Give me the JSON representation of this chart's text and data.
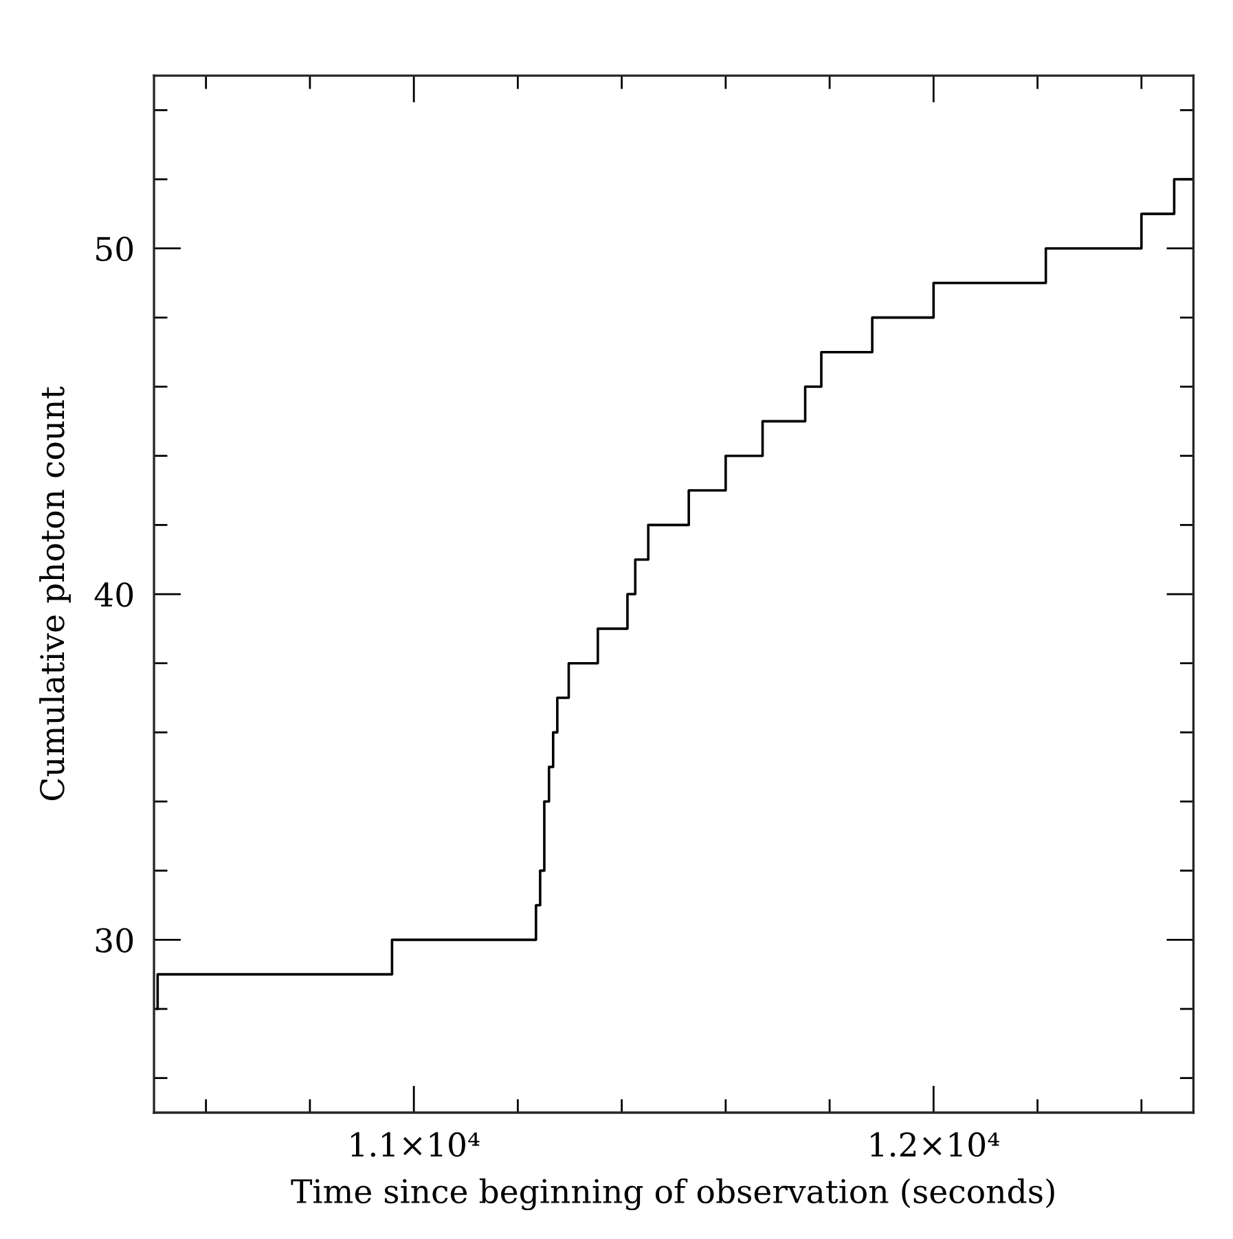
{
  "chart_data": {
    "type": "step",
    "xlabel": "Time since beginning of observation (seconds)",
    "ylabel": "Cumulative photon count",
    "x": [
      10505,
      10507,
      10958,
      11235,
      11243,
      11251,
      11260,
      11268,
      11276,
      11298,
      11354,
      11411,
      11426,
      11451,
      11529,
      11600,
      11671,
      11753,
      11784,
      11882,
      12000,
      12216,
      12400,
      12463,
      12500
    ],
    "series": [
      {
        "color": "#000000",
        "values": [
          28,
          29,
          30,
          31,
          32,
          34,
          35,
          36,
          37,
          38,
          39,
          40,
          41,
          42,
          43,
          44,
          45,
          46,
          47,
          48,
          49,
          50,
          51,
          52,
          52
        ]
      }
    ],
    "xlim": [
      10500,
      12500
    ],
    "ylim": [
      25,
      55
    ],
    "xticks": [
      {
        "value": 10600,
        "label": null
      },
      {
        "value": 10800,
        "label": null
      },
      {
        "value": 11000,
        "label": "1.1×10⁴"
      },
      {
        "value": 11200,
        "label": null
      },
      {
        "value": 11400,
        "label": null
      },
      {
        "value": 11600,
        "label": null
      },
      {
        "value": 11800,
        "label": null
      },
      {
        "value": 12000,
        "label": "1.2×10⁴"
      },
      {
        "value": 12200,
        "label": null
      },
      {
        "value": 12400,
        "label": null
      }
    ],
    "yticks": [
      {
        "value": 26,
        "label": null
      },
      {
        "value": 28,
        "label": null
      },
      30,
      {
        "value": 32,
        "label": null
      },
      {
        "value": 34,
        "label": null
      },
      {
        "value": 36,
        "label": null
      },
      {
        "value": 38,
        "label": null
      },
      40,
      {
        "value": 42,
        "label": null
      },
      {
        "value": 44,
        "label": null
      },
      {
        "value": 46,
        "label": null
      },
      {
        "value": 48,
        "label": null
      },
      50,
      {
        "value": 52,
        "label": null
      },
      {
        "value": 54,
        "label": null
      }
    ],
    "grid": false,
    "legend": false,
    "line_style": "solid",
    "marker": "none"
  }
}
